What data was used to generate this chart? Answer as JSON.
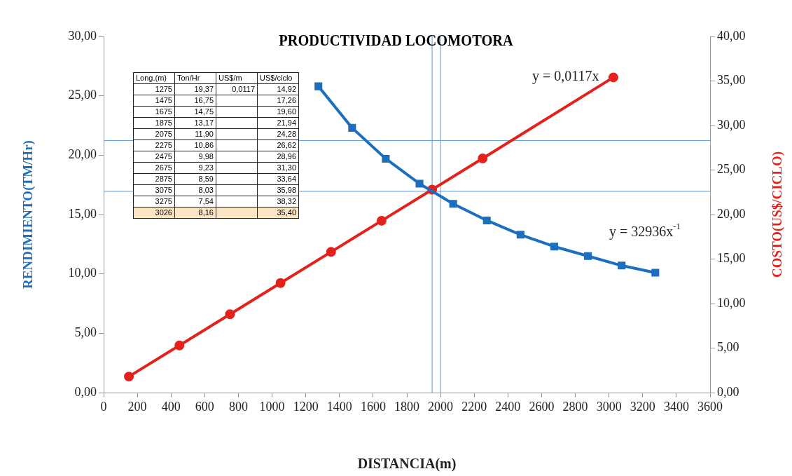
{
  "chart_data": {
    "type": "line",
    "title": "PRODUCTIVIDAD LOCOMOTORA",
    "xlabel": "DISTANCIA(m)",
    "ylabel": "RENDIMIENTO(TM/Hr)",
    "y2label": "COSTO(US$/CICLO)",
    "xlim": [
      0,
      3600
    ],
    "xticks": [
      0,
      200,
      400,
      600,
      800,
      1000,
      1200,
      1400,
      1600,
      1800,
      2000,
      2200,
      2400,
      2600,
      2800,
      3000,
      3200,
      3400,
      3600
    ],
    "ylim": [
      0,
      30
    ],
    "yticks": [
      {
        "value": 0,
        "label": "0,00"
      },
      {
        "value": 5,
        "label": "5,00"
      },
      {
        "value": 10,
        "label": "10,00"
      },
      {
        "value": 15,
        "label": "15,00"
      },
      {
        "value": 20,
        "label": "20,00"
      },
      {
        "value": 25,
        "label": "25,00"
      },
      {
        "value": 30,
        "label": "30,00"
      }
    ],
    "y2lim": [
      0,
      40
    ],
    "y2ticks": [
      {
        "value": 0,
        "label": "0,00"
      },
      {
        "value": 5,
        "label": "5,00"
      },
      {
        "value": 10,
        "label": "10,00"
      },
      {
        "value": 15,
        "label": "15,00"
      },
      {
        "value": 20,
        "label": "20,00"
      },
      {
        "value": 25,
        "label": "25,00"
      },
      {
        "value": 30,
        "label": "30,00"
      },
      {
        "value": 35,
        "label": "35,00"
      },
      {
        "value": 40,
        "label": "40,00"
      }
    ],
    "grid": false,
    "legend": false,
    "series": [
      {
        "color": "#1c6fbe",
        "marker": "square",
        "x": [
          1275,
          1475,
          1675,
          1875,
          2075,
          2275,
          2475,
          2675,
          2875,
          3075,
          3275
        ],
        "values": [
          25.8,
          22.3,
          19.7,
          17.6,
          15.9,
          14.5,
          13.3,
          12.3,
          11.5,
          10.7,
          10.1
        ]
      },
      {
        "color": "#e3221c",
        "marker": "circle",
        "axis": "y2",
        "x": [
          150,
          450,
          750,
          1050,
          1350,
          1650,
          1950,
          2250,
          3026
        ],
        "values": [
          1.8,
          5.3,
          8.8,
          12.3,
          15.8,
          19.3,
          22.8,
          26.3,
          35.4
        ]
      }
    ],
    "ref_lines": [
      {
        "axis": "x",
        "value": 1950,
        "color": "#5b9bd5"
      },
      {
        "axis": "x",
        "value": 2000,
        "color": "#5b9bd5"
      },
      {
        "axis": "y2",
        "value": 22.6,
        "color": "#5b9bd5"
      },
      {
        "axis": "y2",
        "value": 28.3,
        "color": "#5b9bd5"
      }
    ],
    "annotations": [
      "y = 0,0117x",
      "y = 32936x$^{-1}$",
      "Long.(m)",
      "Ton/Hr",
      "US$/m",
      "US$/ciclo",
      "1275",
      "19,37",
      "0,0117",
      "14,92",
      "1475",
      "16,75",
      null,
      "17,26",
      "1675",
      "14,75",
      null,
      "19,60",
      "1875",
      "13,17",
      null,
      "21,94",
      "2075",
      "11,90",
      null,
      "24,28",
      "2275",
      "10,86",
      null,
      "26,62",
      "2475",
      "9,98",
      null,
      "28,96",
      "2675",
      "9,23",
      null,
      "31,30",
      "2875",
      "8,59",
      null,
      "33,64",
      "3075",
      "8,03",
      null,
      "35,98",
      "3275",
      "7,54",
      null,
      "38,32",
      "3026",
      "8,16",
      null,
      "35,40"
    ]
  }
}
